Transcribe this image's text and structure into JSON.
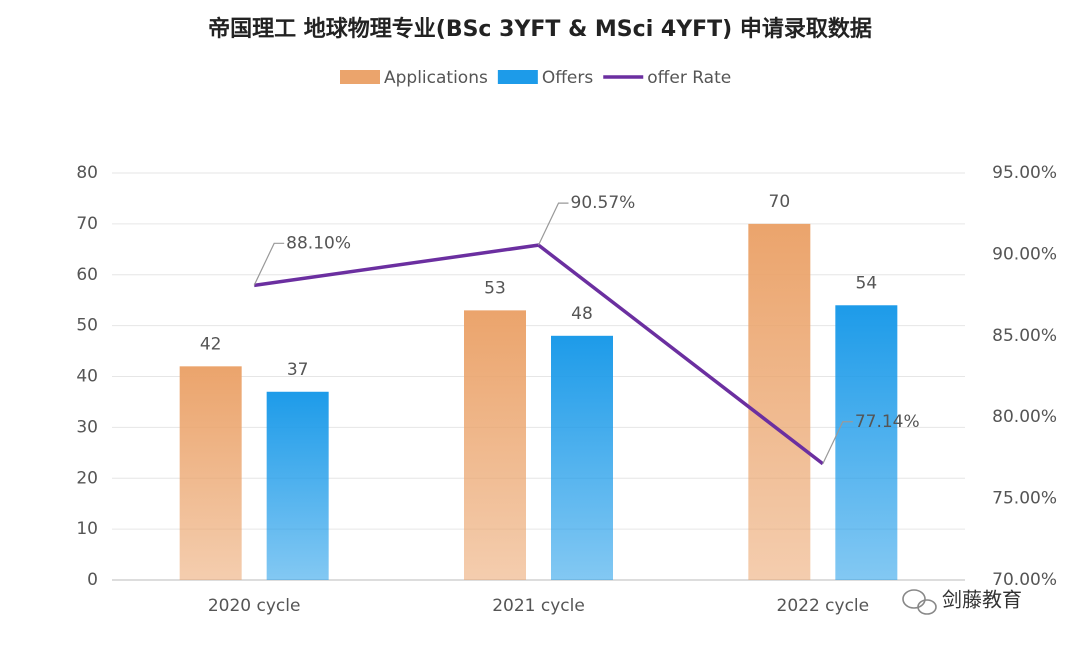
{
  "chart_data": {
    "type": "bar_line",
    "title": "帝国理工  地球物理专业(BSc 3YFT & MSci 4YFT) 申请录取数据",
    "categories": [
      "2020 cycle",
      "2021 cycle",
      "2022 cycle"
    ],
    "series": [
      {
        "name": "Applications",
        "type": "bar",
        "color": "#eba46c",
        "values": [
          42,
          53,
          70
        ]
      },
      {
        "name": "Offers",
        "type": "bar",
        "color": "#1d9be9",
        "values": [
          37,
          48,
          54
        ]
      },
      {
        "name": "offer Rate",
        "type": "line",
        "axis": "y2",
        "color": "#6b2fa0",
        "values": [
          88.1,
          90.57,
          77.14
        ],
        "value_labels": [
          "88.10%",
          "90.57%",
          "77.14%"
        ]
      }
    ],
    "ylim": [
      0,
      80
    ],
    "yticks": [
      0,
      10,
      20,
      30,
      40,
      50,
      60,
      70,
      80
    ],
    "y2lim": [
      70,
      95
    ],
    "y2ticks": [
      {
        "value": 70,
        "label": "70.00%"
      },
      {
        "value": 75,
        "label": "75.00%"
      },
      {
        "value": 80,
        "label": "80.00%"
      },
      {
        "value": 85,
        "label": "85.00%"
      },
      {
        "value": 90,
        "label": "90.00%"
      },
      {
        "value": 95,
        "label": "95.00%"
      }
    ],
    "grid": true,
    "legend": "top",
    "watermark": "剑藤教育"
  }
}
